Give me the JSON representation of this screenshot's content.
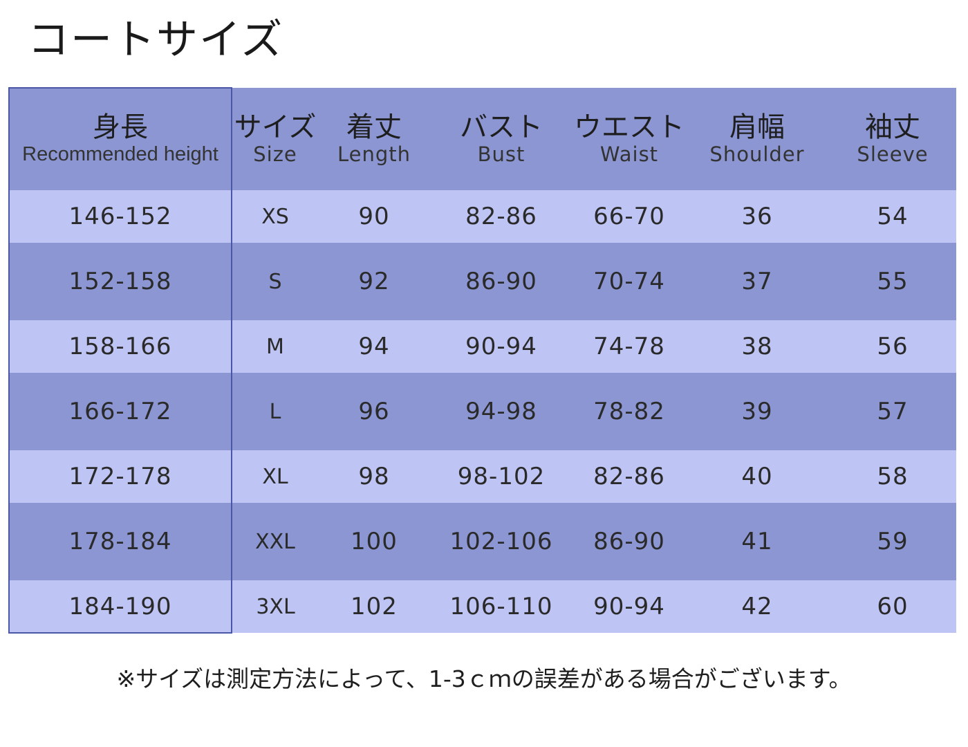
{
  "title": "コートサイズ",
  "columns": [
    {
      "jp": "身長",
      "en": "Recommended height"
    },
    {
      "jp": "サイズ",
      "en": "Size"
    },
    {
      "jp": "着丈",
      "en": "Length"
    },
    {
      "jp": "バスト",
      "en": "Bust"
    },
    {
      "jp": "ウエスト",
      "en": "Waist"
    },
    {
      "jp": "肩幅",
      "en": "Shoulder"
    },
    {
      "jp": "袖丈",
      "en": "Sleeve"
    }
  ],
  "rows": [
    [
      "146-152",
      "XS",
      "90",
      "82-86",
      "66-70",
      "36",
      "54"
    ],
    [
      "152-158",
      "S",
      "92",
      "86-90",
      "70-74",
      "37",
      "55"
    ],
    [
      "158-166",
      "M",
      "94",
      "90-94",
      "74-78",
      "38",
      "56"
    ],
    [
      "166-172",
      "L",
      "96",
      "94-98",
      "78-82",
      "39",
      "57"
    ],
    [
      "172-178",
      "XL",
      "98",
      "98-102",
      "82-86",
      "40",
      "58"
    ],
    [
      "178-184",
      "XXL",
      "100",
      "102-106",
      "86-90",
      "41",
      "59"
    ],
    [
      "184-190",
      "3XL",
      "102",
      "106-110",
      "90-94",
      "42",
      "60"
    ]
  ],
  "note": "※サイズは測定方法によって、1-3ｃｍの誤差がある場合がございます。",
  "colors": {
    "header_bg": "#8b96d2",
    "row_light": "#bec4f3",
    "row_dark": "#8b96d2",
    "height_col_border": "#4a56a6"
  }
}
